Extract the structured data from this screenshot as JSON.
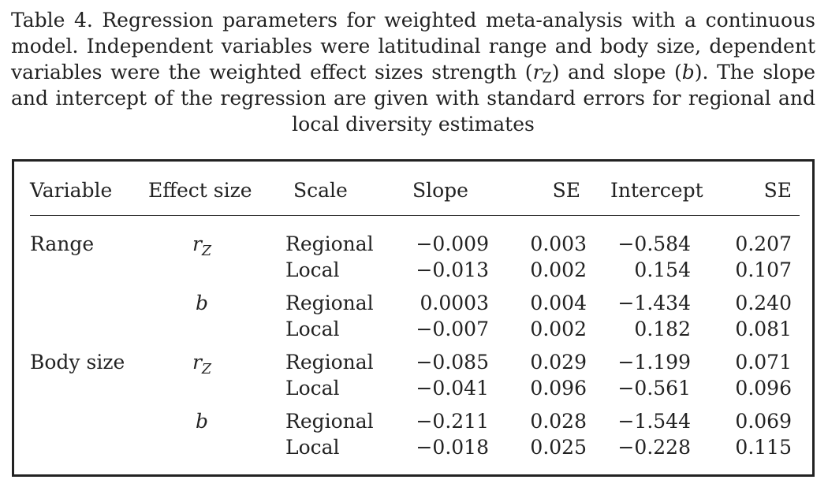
{
  "caption": {
    "lead": "Table 4. Regression parameters for weighted meta-analysis with a continuous model. Independent variables were latitudinal range and body size, dependent variables were the weighted effect sizes strength (",
    "r_symbol": "r",
    "r_subscript": "Z",
    "middle": ") and slope (",
    "b_symbol": "b",
    "tail": "). The slope and intercept of the regression are given with standard errors for regional and local diversity estimates"
  },
  "table": {
    "headers": {
      "variable": "Variable",
      "effect_size": "Effect size",
      "scale": "Scale",
      "slope": "Slope",
      "se1": "SE",
      "intercept": "Intercept",
      "se2": "SE"
    },
    "rows": [
      {
        "variable": "Range",
        "effect": "r",
        "effect_sub": "Z",
        "scale": "Regional",
        "slope": "−0.009",
        "se1": "0.003",
        "intercept": "−0.584",
        "se2": "0.207"
      },
      {
        "variable": "",
        "effect": "",
        "effect_sub": "",
        "scale": "Local",
        "slope": "−0.013",
        "se1": "0.002",
        "intercept": "0.154",
        "se2": "0.107"
      },
      {
        "variable": "",
        "effect": "b",
        "effect_sub": "",
        "scale": "Regional",
        "slope": "0.0003",
        "se1": "0.004",
        "intercept": "−1.434",
        "se2": "0.240"
      },
      {
        "variable": "",
        "effect": "",
        "effect_sub": "",
        "scale": "Local",
        "slope": "−0.007",
        "se1": "0.002",
        "intercept": "0.182",
        "se2": "0.081"
      },
      {
        "variable": "Body size",
        "effect": "r",
        "effect_sub": "Z",
        "scale": "Regional",
        "slope": "−0.085",
        "se1": "0.029",
        "intercept": "−1.199",
        "se2": "0.071"
      },
      {
        "variable": "",
        "effect": "",
        "effect_sub": "",
        "scale": "Local",
        "slope": "−0.041",
        "se1": "0.096",
        "intercept": "−0.561",
        "se2": "0.096"
      },
      {
        "variable": "",
        "effect": "b",
        "effect_sub": "",
        "scale": "Regional",
        "slope": "−0.211",
        "se1": "0.028",
        "intercept": "−1.544",
        "se2": "0.069"
      },
      {
        "variable": "",
        "effect": "",
        "effect_sub": "",
        "scale": "Local",
        "slope": "−0.018",
        "se1": "0.025",
        "intercept": "−0.228",
        "se2": "0.115"
      }
    ]
  }
}
